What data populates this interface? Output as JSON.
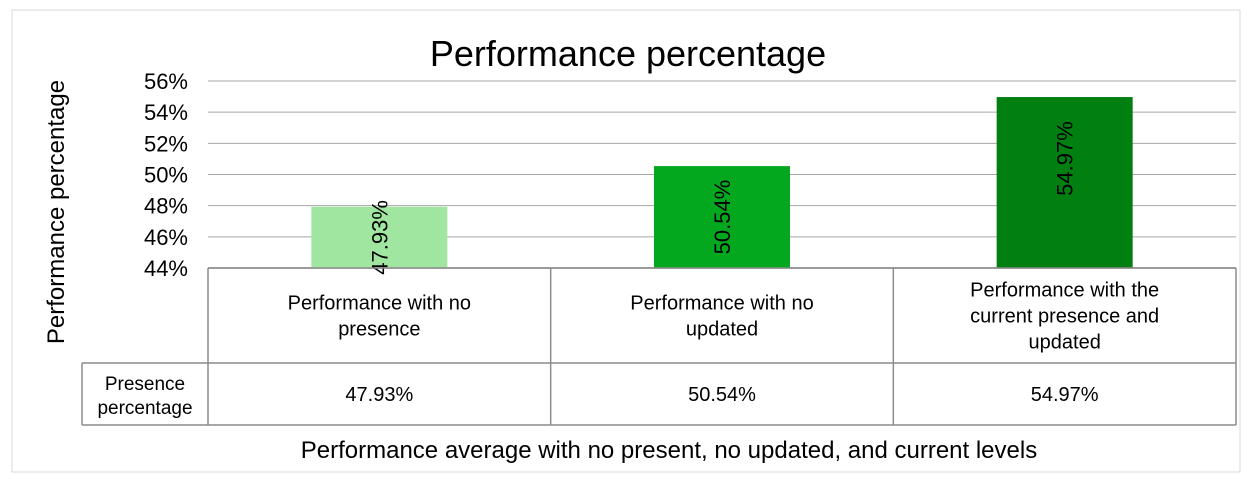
{
  "chart_data": {
    "type": "bar",
    "title": "Performance percentage",
    "ylabel": "Performance percentage",
    "xlabel": "Performance average with no present, no updated, and current levels",
    "ylim": [
      44,
      56
    ],
    "y_ticks": [
      "44%",
      "46%",
      "48%",
      "50%",
      "52%",
      "54%",
      "56%"
    ],
    "y_tick_values": [
      44,
      46,
      48,
      50,
      52,
      54,
      56
    ],
    "grid": true,
    "categories": [
      [
        "Performance with no",
        "presence"
      ],
      [
        "Performance with no",
        "updated"
      ],
      [
        "Performance with the",
        "current presence and",
        "updated"
      ]
    ],
    "series": [
      {
        "name": "Presence percentage",
        "values": [
          47.93,
          50.54,
          54.97
        ],
        "labels": [
          "47.93%",
          "50.54%",
          "54.97%"
        ],
        "colors": [
          "#a0e6a0",
          "#03a81e",
          "#017f10"
        ]
      }
    ],
    "table_row_header": [
      "Presence",
      "percentage"
    ],
    "table_values": [
      "47.93%",
      "50.54%",
      "54.97%"
    ]
  }
}
